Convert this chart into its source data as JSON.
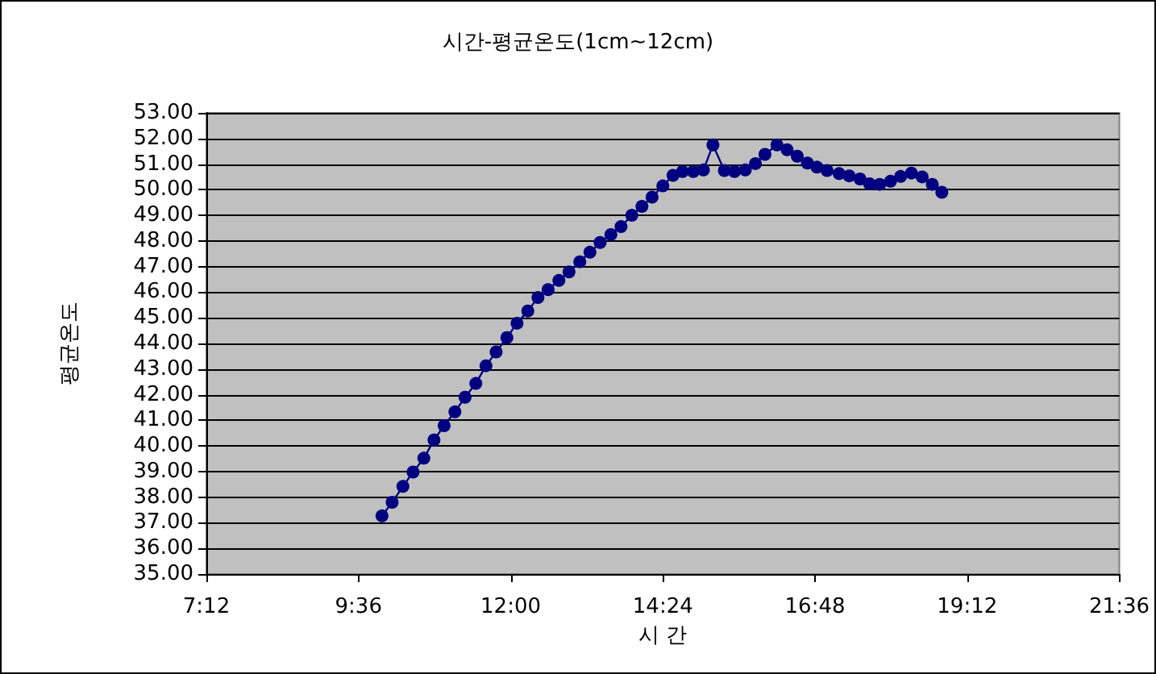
{
  "chart_data": {
    "type": "line",
    "title": "시간-평균온도(1cm~12cm)",
    "xlabel": "시 간",
    "ylabel": "평균온도",
    "x": [
      9.97,
      10.13,
      10.3,
      10.46,
      10.63,
      10.79,
      10.95,
      11.12,
      11.28,
      11.45,
      11.61,
      11.77,
      11.94,
      12.1,
      12.27,
      12.43,
      12.59,
      12.76,
      12.92,
      13.09,
      13.25,
      13.41,
      13.58,
      13.74,
      13.91,
      14.07,
      14.23,
      14.4,
      14.56,
      14.71,
      14.88,
      15.04,
      15.19,
      15.37,
      15.53,
      15.7,
      15.86,
      16.01,
      16.2,
      16.36,
      16.52,
      16.68,
      16.83,
      16.99,
      17.18,
      17.34,
      17.51,
      17.66,
      17.82,
      17.99,
      18.15,
      18.32,
      18.49,
      18.65,
      18.8
    ],
    "series": [
      {
        "color": "#000080",
        "values": [
          37.27,
          37.8,
          38.42,
          38.98,
          39.52,
          40.23,
          40.79,
          41.33,
          41.9,
          42.44,
          43.13,
          43.67,
          44.23,
          44.79,
          45.27,
          45.79,
          46.1,
          46.46,
          46.79,
          47.19,
          47.56,
          47.94,
          48.25,
          48.56,
          49.0,
          49.35,
          49.71,
          50.15,
          50.56,
          50.71,
          50.71,
          50.77,
          51.75,
          50.75,
          50.71,
          50.77,
          51.02,
          51.38,
          51.75,
          51.56,
          51.31,
          51.04,
          50.88,
          50.75,
          50.63,
          50.54,
          50.42,
          50.23,
          50.21,
          50.33,
          50.52,
          50.65,
          50.5,
          50.21,
          49.9
        ]
      }
    ],
    "xlim": [
      7.2,
      21.6
    ],
    "xticks": [
      {
        "value": 7.2,
        "label": "7:12"
      },
      {
        "value": 9.6,
        "label": "9:36"
      },
      {
        "value": 12,
        "label": "12:00"
      },
      {
        "value": 14.4,
        "label": "14:24"
      },
      {
        "value": 16.8,
        "label": "16:48"
      },
      {
        "value": 19.2,
        "label": "19:12"
      },
      {
        "value": 21.6,
        "label": "21:36"
      }
    ],
    "ylim": [
      35,
      53
    ],
    "yticks": [
      {
        "value": 35,
        "label": "35.00"
      },
      {
        "value": 36,
        "label": "36.00"
      },
      {
        "value": 37,
        "label": "37.00"
      },
      {
        "value": 38,
        "label": "38.00"
      },
      {
        "value": 39,
        "label": "39.00"
      },
      {
        "value": 40,
        "label": "40.00"
      },
      {
        "value": 41,
        "label": "41.00"
      },
      {
        "value": 42,
        "label": "42.00"
      },
      {
        "value": 43,
        "label": "43.00"
      },
      {
        "value": 44,
        "label": "44.00"
      },
      {
        "value": 45,
        "label": "45.00"
      },
      {
        "value": 46,
        "label": "46.00"
      },
      {
        "value": 47,
        "label": "47.00"
      },
      {
        "value": 48,
        "label": "48.00"
      },
      {
        "value": 49,
        "label": "49.00"
      },
      {
        "value": 50,
        "label": "50.00"
      },
      {
        "value": 51,
        "label": "51.00"
      },
      {
        "value": 52,
        "label": "52.00"
      },
      {
        "value": 53,
        "label": "53.00"
      }
    ],
    "grid": "y",
    "marker": "circle",
    "line_style": "solid"
  }
}
